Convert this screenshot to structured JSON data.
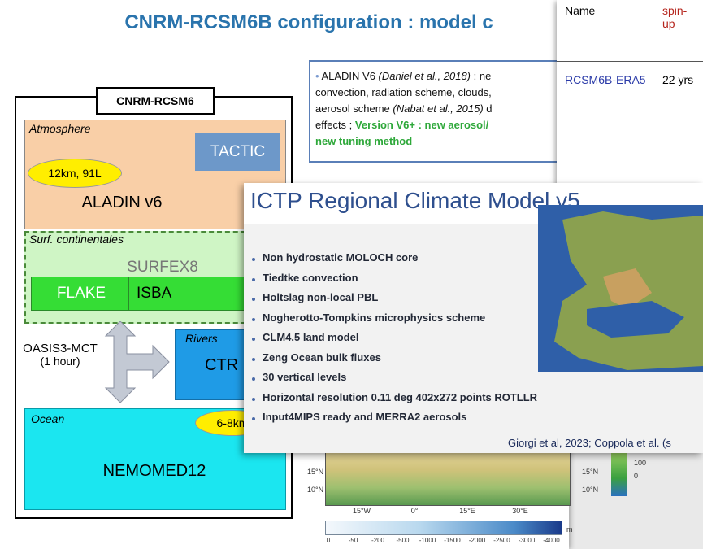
{
  "back_slide": {
    "title": "CNRM-RCSM6B configuration : model c",
    "diagram": {
      "header": "CNRM-RCSM6",
      "atmosphere": "Atmosphere",
      "tactic": "TACTIC",
      "resolution": "12km, 91L",
      "aladin": "ALADIN v6",
      "surface": "Surf. continentales",
      "surfex": "SURFEX8",
      "flake": "FLAKE",
      "isba": "ISBA",
      "coupler": "OASIS3-MCT",
      "coupling_step": "(1 hour)",
      "rivers": "Rivers",
      "ctr": "CTR",
      "ocean": "Ocean",
      "ocean_resolution": "6-8km",
      "nemo": "NEMOMED12"
    },
    "text_box": {
      "line1": [
        "ALADIN V6 ",
        "(Daniel et al., 2018)",
        " : ne"
      ],
      "line2": "convection, radiation scheme, clouds,",
      "line3": [
        "aerosol scheme ",
        "(Nabat et al., 2015)",
        " d"
      ],
      "line4": [
        "effects ; ",
        "Version V6+ :  new aerosol/"
      ],
      "line5": "new tuning method"
    },
    "map": {
      "lat_labels": [
        "15°N",
        "10°N"
      ],
      "lat_labels_right": [
        "15°N",
        "10°N"
      ],
      "lon_labels": [
        "15°W",
        "0°",
        "15°E",
        "30°E"
      ],
      "legend": [
        "100",
        "0"
      ],
      "colorbar": [
        "0",
        "-50",
        "-200",
        "-500",
        "-1000",
        "-1500",
        "-2000",
        "-2500",
        "-3000",
        "-4000"
      ],
      "unit": "m"
    }
  },
  "table": {
    "header": [
      "Name",
      "spin-up"
    ],
    "rows": [
      [
        "RCSM6B-ERA5",
        "22 yrs"
      ]
    ]
  },
  "front_slide": {
    "title": "ICTP Regional Climate Model v5",
    "bullets": [
      "Non hydrostatic MOLOCH core",
      "Tiedtke convection",
      "Holtslag non-local PBL",
      "Nogherotto-Tompkins microphysics scheme",
      "CLM4.5 land model",
      "Zeng Ocean bulk fluxes",
      "30 vertical levels",
      "Horizontal resolution 0.11 deg 402x272 points ROTLLR",
      "Input4MIPS ready and MERRA2 aerosols"
    ],
    "citation": "Giorgi et al, 2023;  Coppola et al. (s"
  }
}
